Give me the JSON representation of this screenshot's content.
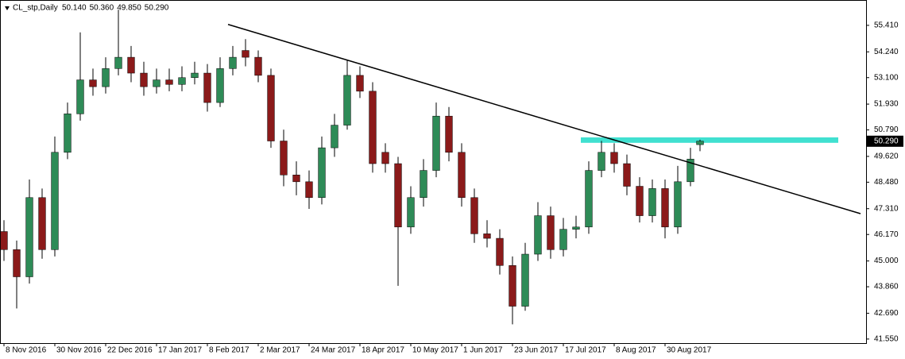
{
  "chart_data": {
    "type": "candlestick",
    "header": {
      "symbol": "CL_stp,Daily",
      "values": [
        50.14,
        50.36,
        49.85,
        50.29
      ],
      "value_labels": [
        "50.140",
        "50.360",
        "49.850",
        "50.290"
      ]
    },
    "last_price": {
      "value": 50.29,
      "label": "50.290"
    },
    "up_color": "#2e8b57",
    "down_color": "#8b1a1a",
    "wick_color": "#000000",
    "x": [
      0,
      4,
      8,
      12,
      16,
      20,
      24,
      28,
      32,
      36,
      40,
      44,
      48,
      52,
      56,
      60,
      64,
      68,
      72,
      76,
      80,
      84,
      88,
      92,
      96,
      100,
      104,
      108,
      112,
      116,
      120,
      124,
      128,
      132,
      136,
      140,
      144,
      148,
      152,
      156,
      160,
      164,
      168,
      172,
      176,
      180,
      184,
      188,
      192,
      196,
      200,
      204,
      208,
      212,
      216,
      219
    ],
    "open": [
      46.3,
      45.5,
      44.3,
      47.8,
      45.5,
      49.8,
      51.5,
      53.0,
      52.7,
      53.5,
      54.0,
      53.3,
      52.7,
      53.0,
      52.8,
      53.1,
      53.3,
      52.0,
      53.5,
      54.3,
      54.0,
      53.2,
      50.3,
      48.8,
      48.5,
      47.8,
      50.0,
      51.0,
      53.2,
      52.5,
      49.8,
      49.3,
      46.5,
      47.8,
      49.0,
      51.4,
      49.8,
      47.8,
      46.2,
      46.0,
      44.8,
      43.0,
      45.3,
      47.0,
      45.5,
      46.4,
      46.5,
      49.0,
      49.8,
      49.3,
      48.3,
      47.0,
      48.2,
      46.5,
      48.5,
      50.14
    ],
    "high": [
      46.8,
      45.9,
      48.6,
      48.2,
      50.5,
      52.0,
      55.1,
      53.5,
      54.0,
      56.1,
      54.5,
      53.8,
      53.5,
      53.5,
      53.6,
      53.8,
      53.7,
      54.0,
      54.5,
      54.8,
      54.3,
      53.5,
      50.8,
      49.4,
      49.0,
      50.5,
      51.5,
      53.9,
      53.6,
      52.9,
      50.2,
      49.6,
      48.3,
      49.5,
      52.0,
      51.8,
      50.2,
      48.2,
      46.8,
      46.4,
      45.2,
      45.8,
      47.6,
      47.4,
      46.9,
      47.0,
      49.4,
      50.3,
      50.2,
      49.7,
      48.7,
      48.6,
      48.6,
      49.2,
      50.0,
      50.36
    ],
    "low": [
      45.0,
      42.9,
      44.0,
      45.1,
      45.2,
      49.5,
      51.2,
      52.3,
      52.4,
      53.2,
      52.9,
      52.3,
      52.4,
      52.5,
      52.5,
      52.8,
      51.6,
      51.8,
      53.2,
      53.6,
      52.9,
      50.0,
      48.3,
      47.9,
      47.3,
      47.5,
      49.6,
      50.8,
      52.2,
      48.9,
      48.9,
      43.9,
      46.2,
      47.4,
      48.7,
      49.4,
      47.4,
      45.8,
      45.6,
      44.4,
      42.2,
      42.8,
      45.0,
      45.1,
      45.2,
      46.0,
      46.2,
      48.7,
      48.9,
      47.9,
      46.7,
      46.7,
      46.0,
      46.2,
      48.3,
      49.85
    ],
    "close": [
      45.5,
      44.3,
      47.8,
      45.5,
      49.8,
      51.5,
      53.0,
      52.7,
      53.5,
      54.0,
      53.3,
      52.7,
      53.0,
      52.8,
      53.1,
      53.3,
      52.0,
      53.5,
      54.0,
      54.0,
      53.2,
      50.3,
      48.8,
      48.5,
      47.8,
      50.0,
      51.0,
      53.2,
      52.5,
      49.3,
      49.3,
      46.5,
      47.8,
      49.0,
      51.4,
      49.8,
      47.8,
      46.2,
      46.0,
      44.8,
      43.0,
      45.3,
      47.0,
      45.5,
      46.4,
      46.5,
      49.0,
      49.8,
      49.3,
      48.3,
      47.0,
      48.2,
      46.5,
      48.5,
      49.5,
      50.29
    ],
    "trendline": {
      "x": [
        70.5,
        269.5
      ],
      "y": [
        55.45,
        47.09
      ],
      "color": "#000000"
    },
    "zone": {
      "x": [
        181.5,
        262.5
      ],
      "y": [
        50.46,
        50.22
      ],
      "color": "#40e0d0"
    },
    "xlim": [
      -1.25,
      270
    ],
    "ylim": [
      41.37,
      56.53
    ],
    "xticks": [
      {
        "value": 0,
        "label": "8 Nov 2016"
      },
      {
        "value": 16,
        "label": "30 Nov 2016"
      },
      {
        "value": 32,
        "label": "22 Dec 2016"
      },
      {
        "value": 48,
        "label": "17 Jan 2017"
      },
      {
        "value": 64,
        "label": "8 Feb 2017"
      },
      {
        "value": 80,
        "label": "2 Mar 2017"
      },
      {
        "value": 96,
        "label": "24 Mar 2017"
      },
      {
        "value": 112,
        "label": "18 Apr 2017"
      },
      {
        "value": 128,
        "label": "10 May 2017"
      },
      {
        "value": 144,
        "label": "1 Jun 2017"
      },
      {
        "value": 160,
        "label": "23 Jun 2017"
      },
      {
        "value": 176,
        "label": "17 Jul 2017"
      },
      {
        "value": 192,
        "label": "8 Aug 2017"
      },
      {
        "value": 208,
        "label": "30 Aug 2017"
      }
    ],
    "yticks": [
      {
        "value": 55.41,
        "label": "55.410"
      },
      {
        "value": 54.24,
        "label": "54.240"
      },
      {
        "value": 53.1,
        "label": "53.100"
      },
      {
        "value": 51.93,
        "label": "51.930"
      },
      {
        "value": 50.79,
        "label": "50.790"
      },
      {
        "value": 49.62,
        "label": "49.620"
      },
      {
        "value": 48.48,
        "label": "48.480"
      },
      {
        "value": 47.31,
        "label": "47.310"
      },
      {
        "value": 46.17,
        "label": "46.170"
      },
      {
        "value": 45.0,
        "label": "45.000"
      },
      {
        "value": 43.86,
        "label": "43.860"
      },
      {
        "value": 42.69,
        "label": "42.690"
      },
      {
        "value": 41.55,
        "label": "41.550"
      }
    ]
  }
}
